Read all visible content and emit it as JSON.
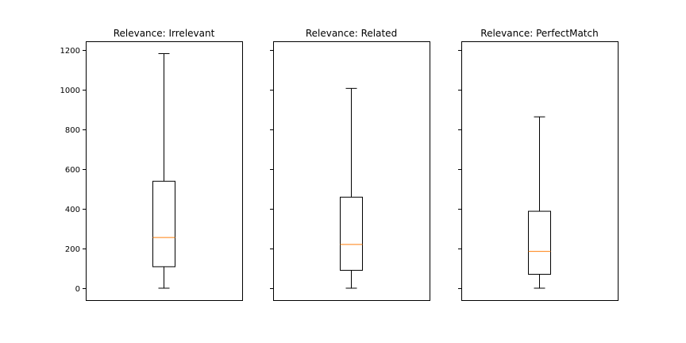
{
  "chart_data": [
    {
      "type": "box",
      "title": "Relevance: Irrelevant",
      "ylim": [
        -60,
        1242
      ],
      "yticks": [
        0,
        200,
        400,
        600,
        800,
        1000,
        1200
      ],
      "show_ytick_labels": true,
      "box": {
        "whisker_low": 0,
        "q1": 108,
        "median": 255,
        "q3": 538,
        "whisker_high": 1180
      }
    },
    {
      "type": "box",
      "title": "Relevance: Related",
      "ylim": [
        -60,
        1242
      ],
      "yticks": [
        0,
        200,
        400,
        600,
        800,
        1000,
        1200
      ],
      "show_ytick_labels": false,
      "box": {
        "whisker_low": 0,
        "q1": 90,
        "median": 220,
        "q3": 458,
        "whisker_high": 1005
      }
    },
    {
      "type": "box",
      "title": "Relevance: PerfectMatch",
      "ylim": [
        -60,
        1242
      ],
      "yticks": [
        0,
        200,
        400,
        600,
        800,
        1000,
        1200
      ],
      "show_ytick_labels": false,
      "box": {
        "whisker_low": 0,
        "q1": 70,
        "median": 185,
        "q3": 387,
        "whisker_high": 862
      }
    }
  ],
  "colors": {
    "box": "#000000",
    "median": "#ff7f0e",
    "axes": "#000000"
  }
}
